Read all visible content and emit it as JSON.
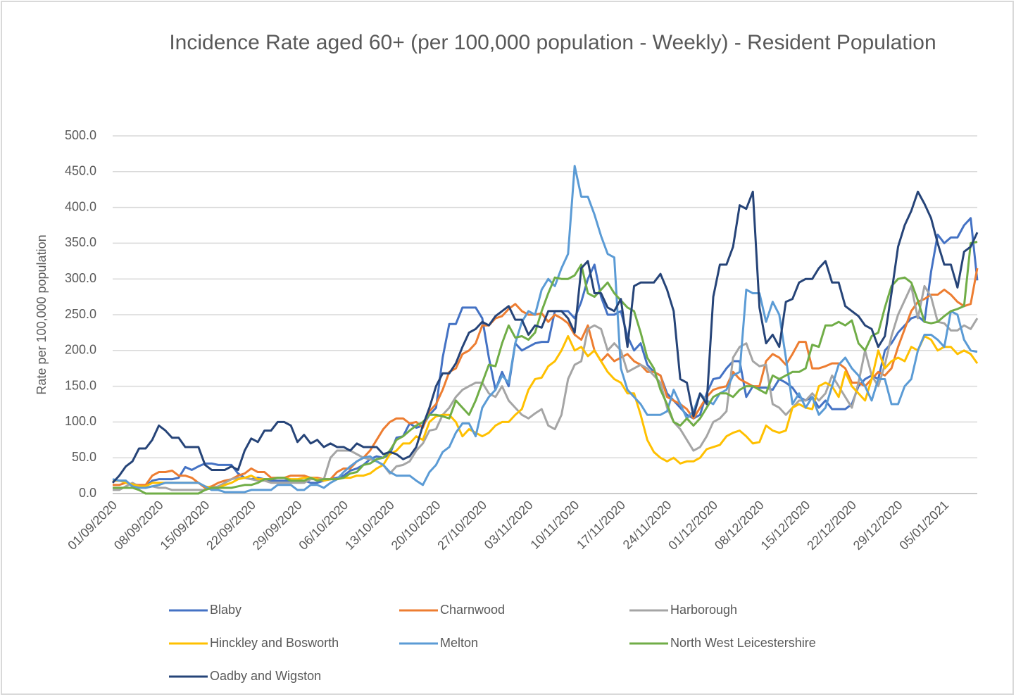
{
  "chart_data": {
    "type": "line",
    "title": "Incidence Rate aged 60+ (per 100,000 population - Weekly) - Resident Population",
    "y_label": "Rate per 100,000 population",
    "categories": [
      "01/09/2020",
      null,
      null,
      null,
      null,
      null,
      null,
      "08/09/2020",
      null,
      null,
      null,
      null,
      null,
      null,
      "15/09/2020",
      null,
      null,
      null,
      null,
      null,
      null,
      "22/09/2020",
      null,
      null,
      null,
      null,
      null,
      null,
      "29/09/2020",
      null,
      null,
      null,
      null,
      null,
      null,
      "06/10/2020",
      null,
      null,
      null,
      null,
      null,
      null,
      "13/10/2020",
      null,
      null,
      null,
      null,
      null,
      null,
      "20/10/2020",
      null,
      null,
      null,
      null,
      null,
      null,
      "27/10/2020",
      null,
      null,
      null,
      null,
      null,
      null,
      "03/11/2020",
      null,
      null,
      null,
      null,
      null,
      null,
      "10/11/2020",
      null,
      null,
      null,
      null,
      null,
      null,
      "17/11/2020",
      null,
      null,
      null,
      null,
      null,
      null,
      "24/11/2020",
      null,
      null,
      null,
      null,
      null,
      null,
      "01/12/2020",
      null,
      null,
      null,
      null,
      null,
      null,
      "08/12/2020",
      null,
      null,
      null,
      null,
      null,
      null,
      "15/12/2020",
      null,
      null,
      null,
      null,
      null,
      null,
      "22/12/2020",
      null,
      null,
      null,
      null,
      null,
      null,
      "29/12/2020",
      null,
      null,
      null,
      null,
      null,
      null,
      "05/01/2021",
      null,
      null,
      null,
      null,
      null
    ],
    "ylim": [
      0,
      500
    ],
    "yticks": [
      {
        "value": 0,
        "label": "0.0"
      },
      {
        "value": 50,
        "label": "50.0"
      },
      {
        "value": 100,
        "label": "100.0"
      },
      {
        "value": 150,
        "label": "150.0"
      },
      {
        "value": 200,
        "label": "200.0"
      },
      {
        "value": 250,
        "label": "250.0"
      },
      {
        "value": 300,
        "label": "300.0"
      },
      {
        "value": 350,
        "label": "350.0"
      },
      {
        "value": 400,
        "label": "400.0"
      },
      {
        "value": 450,
        "label": "450.0"
      },
      {
        "value": 500,
        "label": "500.0"
      }
    ],
    "grid": true,
    "legend": "bottom",
    "series": [
      {
        "name": "Blaby",
        "color": "#4472c4",
        "values": [
          18,
          18,
          18,
          10,
          10,
          10,
          18,
          20,
          20,
          20,
          22,
          37,
          33,
          38,
          42,
          42,
          40,
          40,
          40,
          28,
          22,
          20,
          22,
          20,
          18,
          18,
          18,
          18,
          18,
          18,
          15,
          15,
          18,
          20,
          22,
          25,
          32,
          35,
          40,
          48,
          52,
          50,
          55,
          78,
          80,
          98,
          92,
          95,
          110,
          120,
          190,
          237,
          237,
          260,
          260,
          260,
          245,
          190,
          145,
          170,
          150,
          210,
          200,
          205,
          210,
          212,
          212,
          255,
          255,
          255,
          245,
          268,
          300,
          320,
          275,
          250,
          250,
          255,
          220,
          200,
          210,
          180,
          170,
          165,
          140,
          130,
          120,
          110,
          105,
          110,
          140,
          160,
          162,
          175,
          185,
          185,
          135,
          150,
          148,
          148,
          145,
          160,
          155,
          148,
          135,
          130,
          135,
          120,
          130,
          118,
          118,
          118,
          125,
          150,
          160,
          165,
          160,
          200,
          210,
          225,
          235,
          245,
          248,
          240,
          310,
          362,
          350,
          358,
          358,
          375,
          385,
          298
        ]
      },
      {
        "name": "Charnwood",
        "color": "#ed7d31",
        "values": [
          12,
          12,
          15,
          13,
          12,
          12,
          25,
          30,
          30,
          32,
          25,
          25,
          22,
          15,
          8,
          10,
          15,
          18,
          20,
          25,
          28,
          35,
          30,
          30,
          22,
          22,
          22,
          25,
          25,
          25,
          22,
          22,
          20,
          20,
          30,
          35,
          35,
          45,
          50,
          60,
          75,
          90,
          100,
          105,
          105,
          98,
          100,
          92,
          115,
          125,
          145,
          170,
          175,
          195,
          200,
          210,
          235,
          235,
          245,
          248,
          258,
          265,
          255,
          250,
          250,
          252,
          240,
          250,
          245,
          238,
          222,
          215,
          235,
          200,
          185,
          195,
          185,
          190,
          195,
          185,
          180,
          170,
          170,
          165,
          135,
          130,
          125,
          118,
          105,
          120,
          135,
          145,
          148,
          150,
          170,
          160,
          155,
          150,
          150,
          185,
          195,
          190,
          180,
          195,
          212,
          212,
          175,
          175,
          178,
          182,
          182,
          175,
          155,
          155,
          150,
          160,
          170,
          165,
          175,
          205,
          230,
          255,
          268,
          272,
          278,
          278,
          285,
          278,
          268,
          262,
          265,
          315
        ]
      },
      {
        "name": "Harborough",
        "color": "#a5a5a5",
        "values": [
          5,
          5,
          10,
          15,
          10,
          8,
          10,
          8,
          8,
          5,
          5,
          5,
          5,
          5,
          5,
          8,
          10,
          15,
          20,
          22,
          22,
          20,
          18,
          18,
          15,
          15,
          15,
          15,
          15,
          15,
          20,
          20,
          20,
          50,
          60,
          60,
          60,
          55,
          50,
          48,
          45,
          40,
          28,
          38,
          40,
          45,
          60,
          70,
          88,
          90,
          110,
          120,
          135,
          145,
          150,
          155,
          155,
          140,
          135,
          150,
          130,
          120,
          110,
          105,
          112,
          118,
          95,
          90,
          110,
          160,
          180,
          185,
          230,
          235,
          230,
          200,
          210,
          200,
          170,
          175,
          180,
          175,
          165,
          155,
          120,
          100,
          90,
          75,
          60,
          65,
          80,
          100,
          105,
          115,
          190,
          205,
          210,
          185,
          178,
          180,
          125,
          120,
          110,
          120,
          130,
          130,
          140,
          130,
          140,
          165,
          150,
          135,
          120,
          155,
          200,
          165,
          150,
          180,
          220,
          250,
          270,
          290,
          245,
          290,
          275,
          240,
          238,
          228,
          228,
          235,
          230,
          245
        ]
      },
      {
        "name": "Hinckley and Bosworth",
        "color": "#ffc000",
        "values": [
          18,
          18,
          15,
          13,
          10,
          10,
          15,
          15,
          15,
          15,
          15,
          15,
          15,
          15,
          10,
          8,
          8,
          12,
          15,
          20,
          22,
          25,
          20,
          20,
          20,
          22,
          22,
          20,
          20,
          22,
          22,
          20,
          18,
          20,
          20,
          22,
          22,
          25,
          25,
          28,
          35,
          40,
          55,
          60,
          70,
          70,
          80,
          75,
          100,
          108,
          110,
          110,
          100,
          80,
          90,
          85,
          80,
          85,
          95,
          100,
          100,
          110,
          118,
          145,
          160,
          162,
          178,
          185,
          200,
          220,
          200,
          205,
          192,
          200,
          185,
          170,
          160,
          155,
          140,
          140,
          110,
          75,
          58,
          50,
          45,
          50,
          42,
          45,
          45,
          50,
          62,
          65,
          68,
          80,
          85,
          88,
          80,
          70,
          72,
          95,
          88,
          85,
          88,
          120,
          125,
          120,
          118,
          150,
          155,
          150,
          135,
          170,
          150,
          140,
          130,
          160,
          200,
          175,
          185,
          190,
          185,
          205,
          200,
          220,
          215,
          200,
          205,
          205,
          195,
          200,
          195,
          182
        ]
      },
      {
        "name": "Melton",
        "color": "#5b9bd5",
        "values": [
          20,
          18,
          18,
          10,
          8,
          8,
          10,
          12,
          15,
          15,
          15,
          15,
          15,
          15,
          10,
          5,
          5,
          2,
          2,
          2,
          2,
          5,
          5,
          5,
          5,
          12,
          12,
          12,
          5,
          5,
          12,
          12,
          8,
          15,
          20,
          30,
          38,
          45,
          50,
          52,
          45,
          40,
          30,
          25,
          25,
          25,
          18,
          12,
          30,
          40,
          58,
          65,
          85,
          98,
          98,
          80,
          120,
          135,
          145,
          165,
          155,
          210,
          240,
          255,
          250,
          285,
          300,
          290,
          315,
          335,
          458,
          415,
          415,
          390,
          360,
          335,
          330,
          175,
          145,
          135,
          125,
          110,
          110,
          110,
          115,
          145,
          125,
          105,
          115,
          140,
          130,
          125,
          140,
          145,
          165,
          170,
          285,
          280,
          280,
          240,
          268,
          250,
          190,
          125,
          140,
          120,
          135,
          110,
          120,
          150,
          180,
          190,
          175,
          165,
          150,
          130,
          160,
          160,
          125,
          125,
          150,
          160,
          200,
          222,
          222,
          215,
          205,
          255,
          250,
          215,
          200,
          198
        ]
      },
      {
        "name": "North West Leicestershire",
        "color": "#70ad47",
        "values": [
          8,
          8,
          8,
          8,
          5,
          0,
          0,
          0,
          0,
          0,
          0,
          0,
          0,
          0,
          5,
          8,
          8,
          8,
          8,
          10,
          12,
          12,
          15,
          20,
          20,
          22,
          22,
          18,
          18,
          18,
          22,
          18,
          20,
          20,
          20,
          22,
          28,
          30,
          40,
          42,
          48,
          50,
          60,
          75,
          80,
          88,
          95,
          100,
          110,
          110,
          108,
          105,
          130,
          120,
          110,
          130,
          155,
          180,
          178,
          210,
          235,
          218,
          220,
          215,
          225,
          255,
          280,
          302,
          300,
          300,
          305,
          320,
          280,
          275,
          285,
          295,
          280,
          270,
          260,
          255,
          225,
          190,
          175,
          145,
          125,
          100,
          95,
          105,
          95,
          105,
          120,
          135,
          140,
          140,
          135,
          145,
          150,
          150,
          145,
          140,
          165,
          160,
          165,
          170,
          170,
          175,
          208,
          205,
          235,
          235,
          240,
          235,
          242,
          210,
          200,
          220,
          225,
          260,
          290,
          300,
          302,
          295,
          270,
          240,
          238,
          240,
          248,
          255,
          258,
          262,
          350,
          352
        ]
      },
      {
        "name": "Oadby and Wigston",
        "color": "#264478",
        "values": [
          15,
          25,
          38,
          45,
          63,
          63,
          75,
          95,
          88,
          78,
          78,
          65,
          65,
          65,
          40,
          33,
          33,
          33,
          38,
          33,
          60,
          77,
          72,
          88,
          88,
          100,
          100,
          95,
          72,
          82,
          70,
          75,
          65,
          70,
          65,
          65,
          60,
          70,
          65,
          65,
          65,
          55,
          58,
          55,
          48,
          52,
          65,
          95,
          120,
          150,
          168,
          168,
          182,
          205,
          225,
          230,
          240,
          235,
          248,
          255,
          262,
          243,
          243,
          222,
          235,
          232,
          255,
          255,
          255,
          245,
          225,
          315,
          325,
          280,
          280,
          260,
          255,
          272,
          205,
          290,
          295,
          295,
          295,
          307,
          285,
          255,
          160,
          155,
          108,
          140,
          125,
          275,
          320,
          320,
          345,
          403,
          398,
          422,
          260,
          210,
          222,
          205,
          268,
          272,
          295,
          300,
          300,
          315,
          325,
          295,
          295,
          262,
          255,
          248,
          235,
          230,
          205,
          220,
          280,
          345,
          375,
          395,
          422,
          405,
          385,
          350,
          320,
          320,
          288,
          338,
          345,
          365
        ]
      }
    ]
  }
}
